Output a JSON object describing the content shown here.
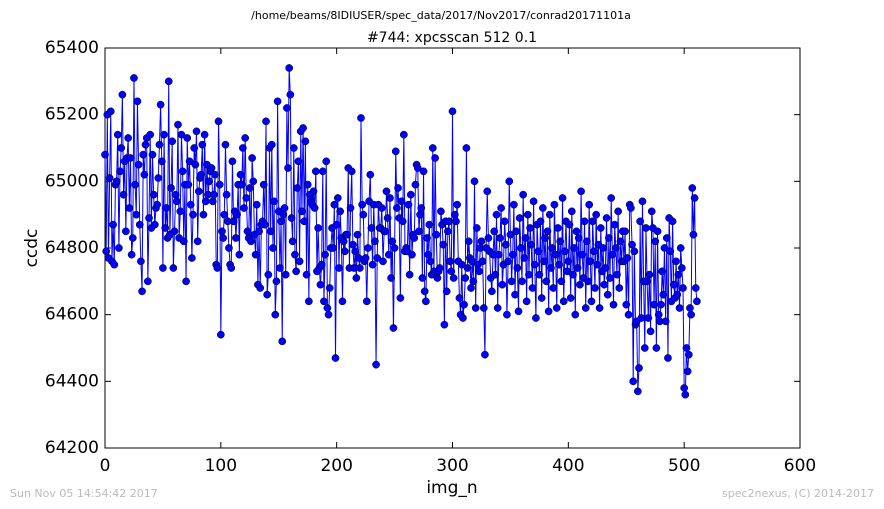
{
  "chart_data": {
    "type": "line",
    "header": "/home/beams/8IDIUSER/spec_data/2017/Nov2017/conrad20171101a",
    "title": "#744: xpcsscan 512 0.1",
    "xlabel": "img_n",
    "ylabel": "ccdc",
    "footer_left": "Sun Nov 05 14:54:42 2017",
    "footer_right": "spec2nexus, (C) 2014-2017",
    "xlim": [
      0,
      600
    ],
    "xticks": [
      0,
      100,
      200,
      300,
      400,
      500,
      600
    ],
    "ylim": [
      64200,
      65400
    ],
    "yticks": [
      64200,
      64400,
      64600,
      64800,
      65000,
      65200,
      65400
    ],
    "grid": false,
    "x": [
      0,
      1,
      2,
      3,
      4,
      5,
      6,
      7,
      8,
      9,
      10,
      11,
      12,
      13,
      14,
      15,
      16,
      17,
      18,
      19,
      20,
      21,
      22,
      23,
      24,
      25,
      26,
      27,
      28,
      29,
      30,
      31,
      32,
      33,
      34,
      35,
      36,
      37,
      38,
      39,
      40,
      41,
      42,
      43,
      44,
      45,
      46,
      47,
      48,
      49,
      50,
      51,
      52,
      53,
      54,
      55,
      56,
      57,
      58,
      59,
      60,
      61,
      62,
      63,
      64,
      65,
      66,
      67,
      68,
      69,
      70,
      71,
      72,
      73,
      74,
      75,
      76,
      77,
      78,
      79,
      80,
      81,
      82,
      83,
      84,
      85,
      86,
      87,
      88,
      89,
      90,
      91,
      92,
      93,
      94,
      95,
      96,
      97,
      98,
      99,
      100,
      101,
      102,
      103,
      104,
      105,
      106,
      107,
      108,
      109,
      110,
      111,
      112,
      113,
      114,
      115,
      116,
      117,
      118,
      119,
      120,
      121,
      122,
      123,
      124,
      125,
      126,
      127,
      128,
      129,
      130,
      131,
      132,
      133,
      134,
      135,
      136,
      137,
      138,
      139,
      140,
      141,
      142,
      143,
      144,
      145,
      146,
      147,
      148,
      149,
      150,
      151,
      152,
      153,
      154,
      155,
      156,
      157,
      158,
      159,
      160,
      161,
      162,
      163,
      164,
      165,
      166,
      167,
      168,
      169,
      170,
      171,
      172,
      173,
      174,
      175,
      176,
      177,
      178,
      179,
      180,
      181,
      182,
      183,
      184,
      185,
      186,
      187,
      188,
      189,
      190,
      191,
      192,
      193,
      194,
      195,
      196,
      197,
      198,
      199,
      200,
      201,
      202,
      203,
      204,
      205,
      206,
      207,
      208,
      209,
      210,
      211,
      212,
      213,
      214,
      215,
      216,
      217,
      218,
      219,
      220,
      221,
      222,
      223,
      224,
      225,
      226,
      227,
      228,
      229,
      230,
      231,
      232,
      233,
      234,
      235,
      236,
      237,
      238,
      239,
      240,
      241,
      242,
      243,
      244,
      245,
      246,
      247,
      248,
      249,
      250,
      251,
      252,
      253,
      254,
      255,
      256,
      257,
      258,
      259,
      260,
      261,
      262,
      263,
      264,
      265,
      266,
      267,
      268,
      269,
      270,
      271,
      272,
      273,
      274,
      275,
      276,
      277,
      278,
      279,
      280,
      281,
      282,
      283,
      284,
      285,
      286,
      287,
      288,
      289,
      290,
      291,
      292,
      293,
      294,
      295,
      296,
      297,
      298,
      299,
      300,
      301,
      302,
      303,
      304,
      305,
      306,
      307,
      308,
      309,
      310,
      311,
      312,
      313,
      314,
      315,
      316,
      317,
      318,
      319,
      320,
      321,
      322,
      323,
      324,
      325,
      326,
      327,
      328,
      329,
      330,
      331,
      332,
      333,
      334,
      335,
      336,
      337,
      338,
      339,
      340,
      341,
      342,
      343,
      344,
      345,
      346,
      347,
      348,
      349,
      350,
      351,
      352,
      353,
      354,
      355,
      356,
      357,
      358,
      359,
      360,
      361,
      362,
      363,
      364,
      365,
      366,
      367,
      368,
      369,
      370,
      371,
      372,
      373,
      374,
      375,
      376,
      377,
      378,
      379,
      380,
      381,
      382,
      383,
      384,
      385,
      386,
      387,
      388,
      389,
      390,
      391,
      392,
      393,
      394,
      395,
      396,
      397,
      398,
      399,
      400,
      401,
      402,
      403,
      404,
      405,
      406,
      407,
      408,
      409,
      410,
      411,
      412,
      413,
      414,
      415,
      416,
      417,
      418,
      419,
      420,
      421,
      422,
      423,
      424,
      425,
      426,
      427,
      428,
      429,
      430,
      431,
      432,
      433,
      434,
      435,
      436,
      437,
      438,
      439,
      440,
      441,
      442,
      443,
      444,
      445,
      446,
      447,
      448,
      449,
      450,
      451,
      452,
      453,
      454,
      455,
      456,
      457,
      458,
      459,
      460,
      461,
      462,
      463,
      464,
      465,
      466,
      467,
      468,
      469,
      470,
      471,
      472,
      473,
      474,
      475,
      476,
      477,
      478,
      479,
      480,
      481,
      482,
      483,
      484,
      485,
      486,
      487,
      488,
      489,
      490,
      491,
      492,
      493,
      494,
      495,
      496,
      497,
      498,
      499,
      500,
      501,
      502,
      503,
      504,
      505,
      506,
      507,
      508,
      509,
      510,
      511
    ],
    "series": [
      {
        "name": "ccdc",
        "color": "#0000ff",
        "values": [
          65080,
          64790,
          65200,
          64770,
          65010,
          65210,
          64760,
          64870,
          64750,
          64990,
          65000,
          65140,
          64800,
          65030,
          65100,
          65260,
          64960,
          65060,
          64850,
          65070,
          65130,
          64920,
          65070,
          64780,
          64830,
          65310,
          64990,
          64900,
          65240,
          65050,
          64870,
          64760,
          64670,
          65080,
          65020,
          65110,
          65130,
          64700,
          64890,
          65140,
          64860,
          65080,
          64960,
          64870,
          64920,
          64930,
          65010,
          65110,
          65230,
          65060,
          64740,
          65140,
          64860,
          64920,
          64830,
          65300,
          64840,
          64980,
          65120,
          64740,
          64850,
          64960,
          64940,
          65170,
          64830,
          64910,
          65140,
          65030,
          64820,
          64990,
          64700,
          65130,
          64990,
          65060,
          64930,
          64770,
          64900,
          65100,
          65050,
          65150,
          64820,
          64970,
          65010,
          65020,
          65110,
          64900,
          65140,
          64940,
          65050,
          64960,
          65000,
          65030,
          65040,
          64940,
          64960,
          65020,
          64750,
          64740,
          65180,
          64990,
          64540,
          64850,
          64830,
          64900,
          65110,
          64960,
          64880,
          64800,
          64750,
          64740,
          65060,
          64880,
          64910,
          64830,
          64900,
          64990,
          64780,
          65020,
          64990,
          65100,
          64920,
          65130,
          64950,
          64850,
          64830,
          64980,
          64820,
          65070,
          65000,
          64840,
          64780,
          64930,
          64690,
          64850,
          64680,
          64870,
          64880,
          64990,
          64870,
          65180,
          64660,
          64720,
          65100,
          64850,
          65110,
          64800,
          64940,
          64600,
          64700,
          65240,
          64910,
          64740,
          64880,
          64520,
          64900,
          64920,
          64720,
          65220,
          65040,
          65340,
          65260,
          64890,
          64820,
          65100,
          64780,
          64730,
          64980,
          65060,
          64760,
          65150,
          64910,
          65160,
          64880,
          65120,
          64720,
          64990,
          64640,
          64960,
          64940,
          64930,
          64970,
          64920,
          65030,
          64730,
          64860,
          64740,
          64690,
          64750,
          65030,
          64640,
          64780,
          65060,
          64620,
          64600,
          64680,
          64800,
          64860,
          64800,
          64930,
          64470,
          64870,
          64950,
          64740,
          64910,
          64830,
          64640,
          64820,
          64790,
          64840,
          64840,
          65040,
          64740,
          64920,
          65030,
          64810,
          64740,
          64790,
          64710,
          64840,
          64770,
          64740,
          65190,
          64930,
          64900,
          64760,
          64770,
          64640,
          64800,
          64940,
          65020,
          64860,
          64750,
          64930,
          64820,
          64450,
          64770,
          64930,
          64860,
          64860,
          64920,
          64760,
          64850,
          64850,
          64970,
          64890,
          64780,
          64950,
          64710,
          64820,
          64560,
          64800,
          65090,
          64920,
          64980,
          64890,
          64650,
          64940,
          64880,
          65140,
          64790,
          64800,
          64790,
          64930,
          64720,
          64960,
          64780,
          64840,
          64830,
          64990,
          65050,
          65040,
          64850,
          64900,
          64920,
          64710,
          65030,
          64670,
          64640,
          64830,
          64780,
          64870,
          64760,
          64720,
          65100,
          64730,
          65070,
          64840,
          64710,
          64730,
          64740,
          64910,
          64870,
          64810,
          64570,
          64880,
          64670,
          64850,
          64880,
          64760,
          64730,
          65210,
          64710,
          64900,
          64880,
          64930,
          64760,
          64650,
          64600,
          64750,
          64590,
          64630,
          64710,
          65100,
          64740,
          64820,
          64770,
          64680,
          64760,
          64700,
          65000,
          64620,
          64860,
          64750,
          64730,
          64800,
          64820,
          64760,
          64620,
          64480,
          64800,
          64970,
          64830,
          64790,
          64710,
          64670,
          64780,
          64850,
          64720,
          64900,
          64620,
          64780,
          64830,
          64920,
          64690,
          64750,
          64880,
          64810,
          64600,
          64760,
          65000,
          64840,
          64700,
          64780,
          64930,
          64660,
          64850,
          64740,
          64610,
          64890,
          64800,
          64700,
          64960,
          64770,
          64830,
          64640,
          64900,
          64720,
          64860,
          64810,
          64680,
          64940,
          64750,
          64590,
          64870,
          64790,
          64720,
          64880,
          64650,
          64920,
          64760,
          64830,
          64700,
          64850,
          64610,
          64900,
          64740,
          64800,
          64680,
          64930,
          64780,
          64620,
          64860,
          64750,
          64820,
          64700,
          64950,
          64640,
          64790,
          64880,
          64730,
          64760,
          64870,
          64650,
          64910,
          64720,
          64800,
          64600,
          64850,
          64740,
          64830,
          64690,
          64970,
          64780,
          64710,
          64880,
          64620,
          64820,
          64700,
          64930,
          64760,
          64640,
          64880,
          64790,
          64680,
          64900,
          64750,
          64810,
          64620,
          64860,
          64730,
          64800,
          64690,
          64740,
          64890,
          64660,
          64830,
          64710,
          64950,
          64780,
          64630,
          64870,
          64800,
          64720,
          64910,
          64680,
          64820,
          64760,
          64850,
          64760,
          64850,
          64630,
          64770,
          64600,
          64930,
          64920,
          64810,
          64400,
          64790,
          64570,
          64580,
          64370,
          64440,
          64880,
          64590,
          64940,
          64700,
          64500,
          64860,
          64700,
          64590,
          64720,
          64550,
          64910,
          64860,
          64630,
          64820,
          64500,
          64850,
          64600,
          64580,
          64630,
          64730,
          64660,
          64800,
          64580,
          64830,
          64470,
          64890,
          64790,
          64640,
          64880,
          64690,
          64650,
          64760,
          64660,
          64720,
          64620,
          64800,
          64740,
          64680,
          64380,
          64360,
          64500,
          64430,
          64480,
          64620,
          64600,
          64980,
          64840,
          64950,
          64680,
          64640
        ]
      }
    ]
  }
}
